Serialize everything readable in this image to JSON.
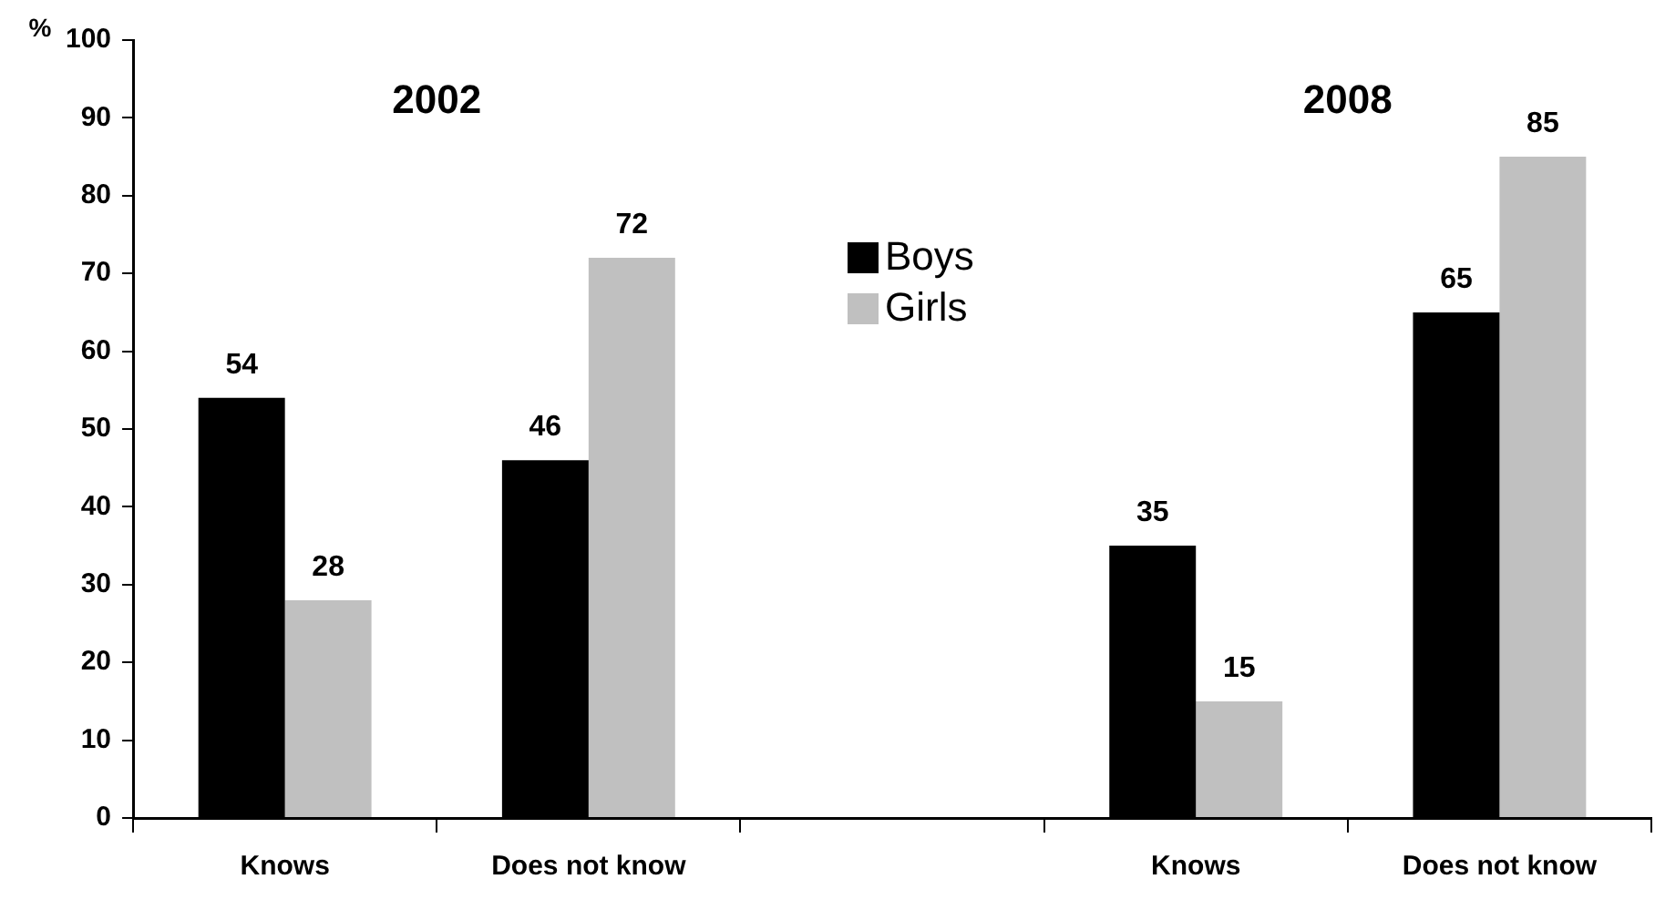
{
  "chart_data": {
    "type": "bar",
    "ylabel": "%",
    "categories": [
      "Knows",
      "Does not know",
      null,
      "Knows",
      "Does not know"
    ],
    "series": [
      {
        "name": "Boys",
        "color": "#000000",
        "values": [
          54,
          46,
          null,
          35,
          65
        ]
      },
      {
        "name": "Girls",
        "color": "#c0c0c0",
        "values": [
          28,
          72,
          null,
          15,
          85
        ]
      }
    ],
    "ylim": [
      0,
      100
    ],
    "yticks": [
      0,
      10,
      20,
      30,
      40,
      50,
      60,
      70,
      80,
      90,
      100
    ],
    "grid": false,
    "legend": "top",
    "data_labels": true,
    "annotations": [
      "2002",
      "2008"
    ]
  }
}
